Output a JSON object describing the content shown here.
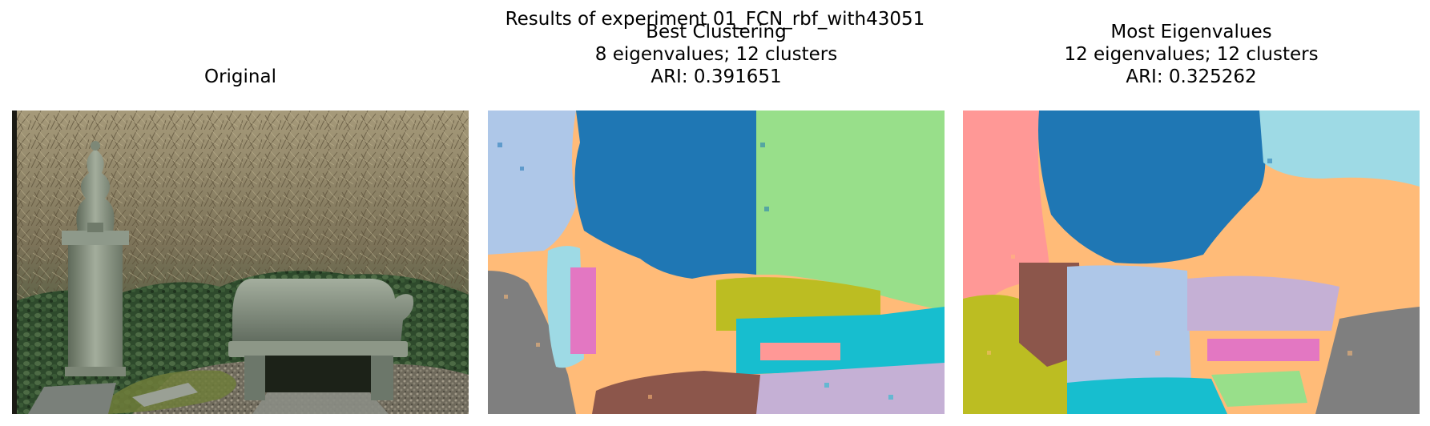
{
  "figure": {
    "suptitle": "Results of experiment 01_FCN_rbf_with43051"
  },
  "panels": {
    "original": {
      "title": "Original"
    },
    "best": {
      "title_line1": "Best Clustering",
      "title_line2": "8 eigenvalues; 12 clusters",
      "title_line3": "ARI: 0.391651"
    },
    "most": {
      "title_line1": "Most Eigenvalues",
      "title_line2": "12 eigenvalues; 12 clusters",
      "title_line3": "ARI: 0.325262"
    }
  },
  "colors": {
    "tab20_blue": "#1f77b4",
    "tab20_light_blue": "#aec7e8",
    "tab20_orange_light": "#ffbb78",
    "tab20_green_light": "#98df8a",
    "tab20_red_light": "#ff9896",
    "tab20_purple_light": "#c5b0d5",
    "tab20_brown": "#8c564b",
    "tab20_pink": "#e377c2",
    "tab20_gray": "#7f7f7f",
    "tab20_olive": "#bcbd22",
    "tab20_cyan": "#17becf",
    "tab20_cyan_light": "#9edae5"
  }
}
